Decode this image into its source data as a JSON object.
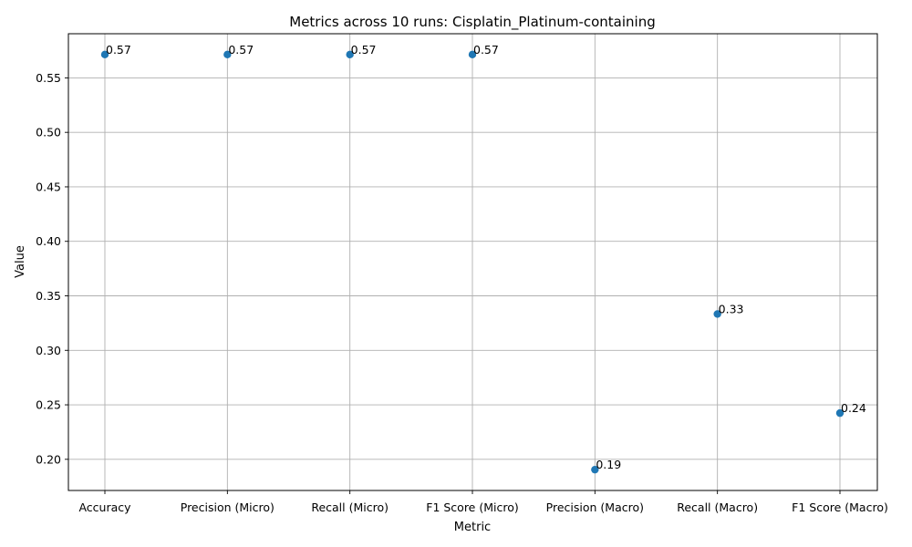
{
  "chart_data": {
    "type": "scatter",
    "title": "Metrics across 10 runs: Cisplatin_Platinum-containing",
    "xlabel": "Metric",
    "ylabel": "Value",
    "categories": [
      "Accuracy",
      "Precision (Micro)",
      "Recall (Micro)",
      "F1 Score (Micro)",
      "Precision (Macro)",
      "Recall (Macro)",
      "F1 Score (Macro)"
    ],
    "values": [
      0.5714,
      0.5714,
      0.5714,
      0.5714,
      0.1905,
      0.3333,
      0.2424
    ],
    "data_labels": [
      "0.57",
      "0.57",
      "0.57",
      "0.57",
      "0.19",
      "0.33",
      "0.24"
    ],
    "yticks": [
      0.2,
      0.25,
      0.3,
      0.35,
      0.4,
      0.45,
      0.5,
      0.55
    ],
    "ytick_labels": [
      "0.20",
      "0.25",
      "0.30",
      "0.35",
      "0.40",
      "0.45",
      "0.50",
      "0.55"
    ],
    "ylim": [
      0.1714,
      0.5905
    ],
    "grid": true,
    "marker_color": "#1f77b4"
  }
}
